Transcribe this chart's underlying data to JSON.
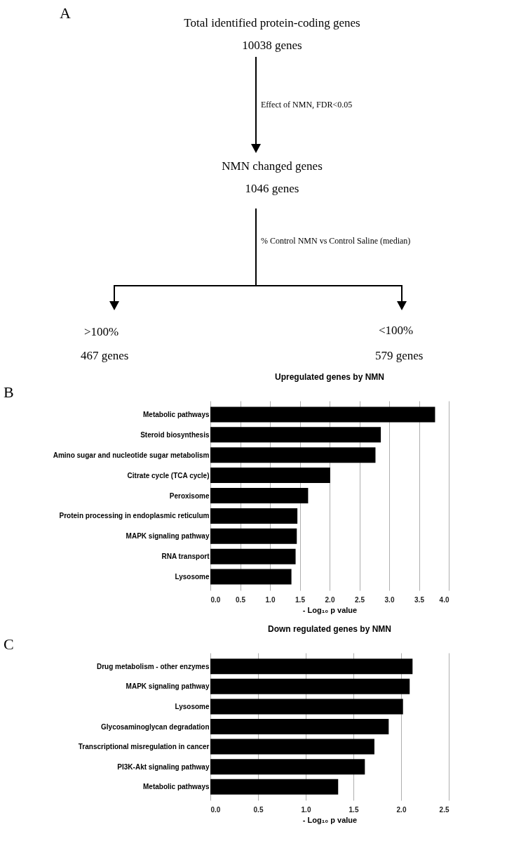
{
  "chart_data": [
    {
      "type": "other",
      "annotations": [
        "A",
        "Total identified protein-coding genes",
        "10038 genes",
        "Effect of NMN, FDR<0.05",
        "NMN changed genes",
        "1046 genes",
        "% Control NMN vs Control Saline (median)",
        ">100%",
        "467 genes",
        "<100%",
        "579 genes"
      ]
    },
    {
      "type": "bar",
      "orientation": "horizontal",
      "title": "Upregulated genes by NMN",
      "annotations": [
        "B"
      ],
      "categories": [
        "Metabolic pathways",
        "Steroid biosynthesis",
        "Amino sugar and nucleotide sugar metabolism",
        "Citrate cycle (TCA cycle)",
        "Peroxisome",
        "Protein processing in endoplasmic reticulum",
        "MAPK signaling pathway",
        "RNA transport",
        "Lysosome"
      ],
      "values": [
        3.77,
        2.86,
        2.77,
        2.01,
        1.64,
        1.46,
        1.45,
        1.43,
        1.36
      ],
      "color": "#000000",
      "xlabel": "- Log₁₀ p value",
      "xlim": [
        0,
        4
      ],
      "xticks": [
        {
          "value": 0,
          "label": "0.0"
        },
        0.5,
        {
          "value": 1,
          "label": "1.0"
        },
        1.5,
        {
          "value": 2,
          "label": "2.0"
        },
        2.5,
        {
          "value": 3,
          "label": "3.0"
        },
        3.5,
        {
          "value": 4,
          "label": "4.0"
        }
      ],
      "grid": "x"
    },
    {
      "type": "bar",
      "orientation": "horizontal",
      "title": "Down regulated genes by NMN",
      "annotations": [
        "C"
      ],
      "categories": [
        "Drug metabolism - other enzymes",
        "MAPK signaling pathway",
        "Lysosome",
        "Glycosaminoglycan degradation",
        "Transcriptional misregulation in cancer",
        "PI3K-Akt signaling pathway",
        "Metabolic pathways"
      ],
      "values": [
        2.12,
        2.09,
        2.02,
        1.87,
        1.72,
        1.62,
        1.34
      ],
      "color": "#000000",
      "xlabel": "- Log₁₀ p value",
      "xlim": [
        0,
        2.5
      ],
      "xticks": [
        {
          "value": 0,
          "label": "0.0"
        },
        0.5,
        {
          "value": 1,
          "label": "1.0"
        },
        1.5,
        {
          "value": 2,
          "label": "2.0"
        },
        2.5
      ],
      "grid": "x"
    }
  ]
}
